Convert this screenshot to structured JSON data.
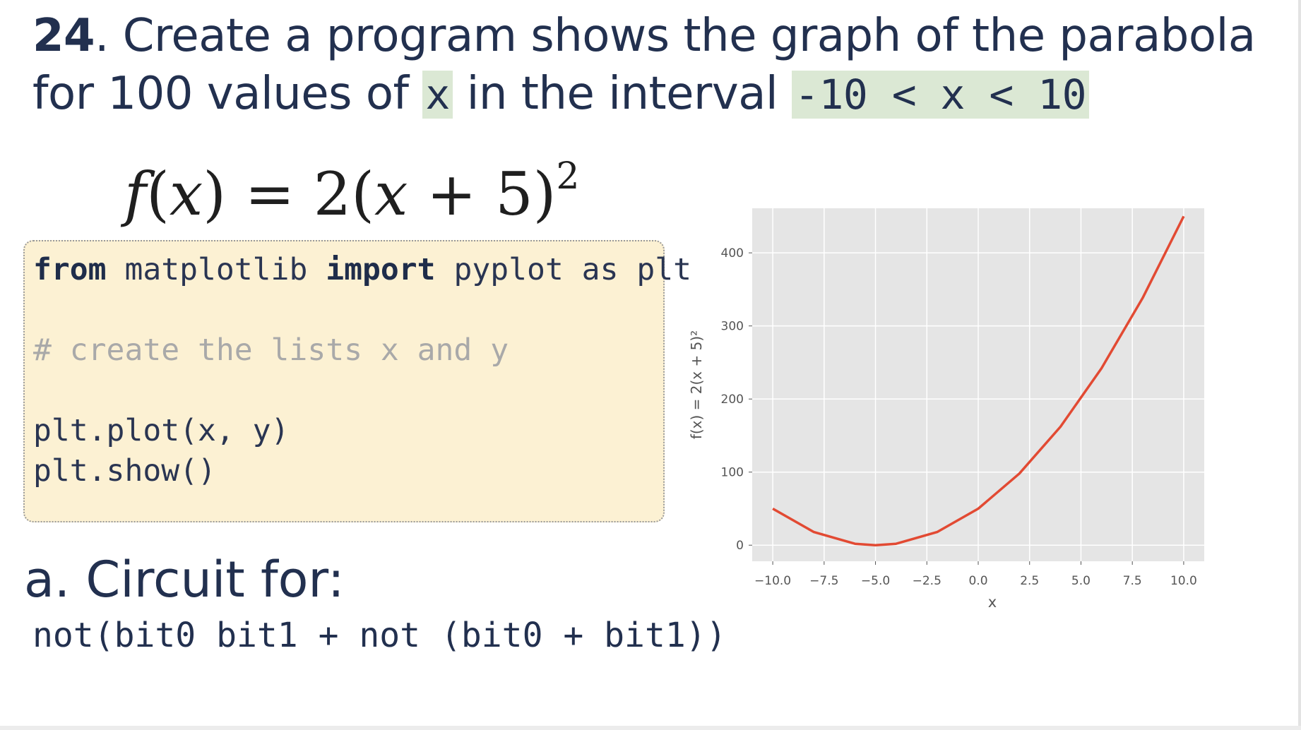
{
  "title": {
    "number": "24",
    "line1_rest": ". Create a program shows the graph of the parabola",
    "line2_prefix": "for 100 values of ",
    "var_x": "x",
    "line2_mid": " in the interval ",
    "interval": "-10 < x < 10"
  },
  "formula": {
    "lhs_f": "f",
    "lhs_open": "(",
    "lhs_x": "x",
    "lhs_close": ") = 2(",
    "rhs_x": "x",
    "rhs_rest": " + 5)",
    "exp": "2"
  },
  "code": {
    "kw_from": "from",
    "mod": " matplotlib ",
    "kw_import": "import",
    "rest1": " pyplot as plt",
    "comment": "# create the lists x and y",
    "line3": "plt.plot(x, y)",
    "line4": "plt.show()"
  },
  "subheading": "a.  Circuit for:",
  "expression": "not(bit0 bit1 + not (bit0 + bit1))",
  "chart_data": {
    "type": "line",
    "xlabel": "x",
    "ylabel": "f(x) = 2(x + 5)²",
    "xlim": [
      -11,
      11
    ],
    "ylim": [
      -22,
      461
    ],
    "xticks": [
      -10.0,
      -7.5,
      -5.0,
      -2.5,
      0.0,
      2.5,
      5.0,
      7.5,
      10.0
    ],
    "xtick_labels": [
      "−10.0",
      "−7.5",
      "−5.0",
      "−2.5",
      "0.0",
      "2.5",
      "5.0",
      "7.5",
      "10.0"
    ],
    "yticks": [
      0,
      100,
      200,
      300,
      400
    ],
    "ytick_labels": [
      "0",
      "100",
      "200",
      "300",
      "400"
    ],
    "grid": true,
    "series": [
      {
        "color": "#e24a33",
        "x": [
          -10,
          -8,
          -6,
          -5,
          -4,
          -2,
          0,
          2,
          4,
          6,
          8,
          10
        ],
        "y": [
          50,
          18,
          2,
          0,
          2,
          18,
          50,
          98,
          162,
          242,
          338,
          450
        ]
      }
    ]
  }
}
